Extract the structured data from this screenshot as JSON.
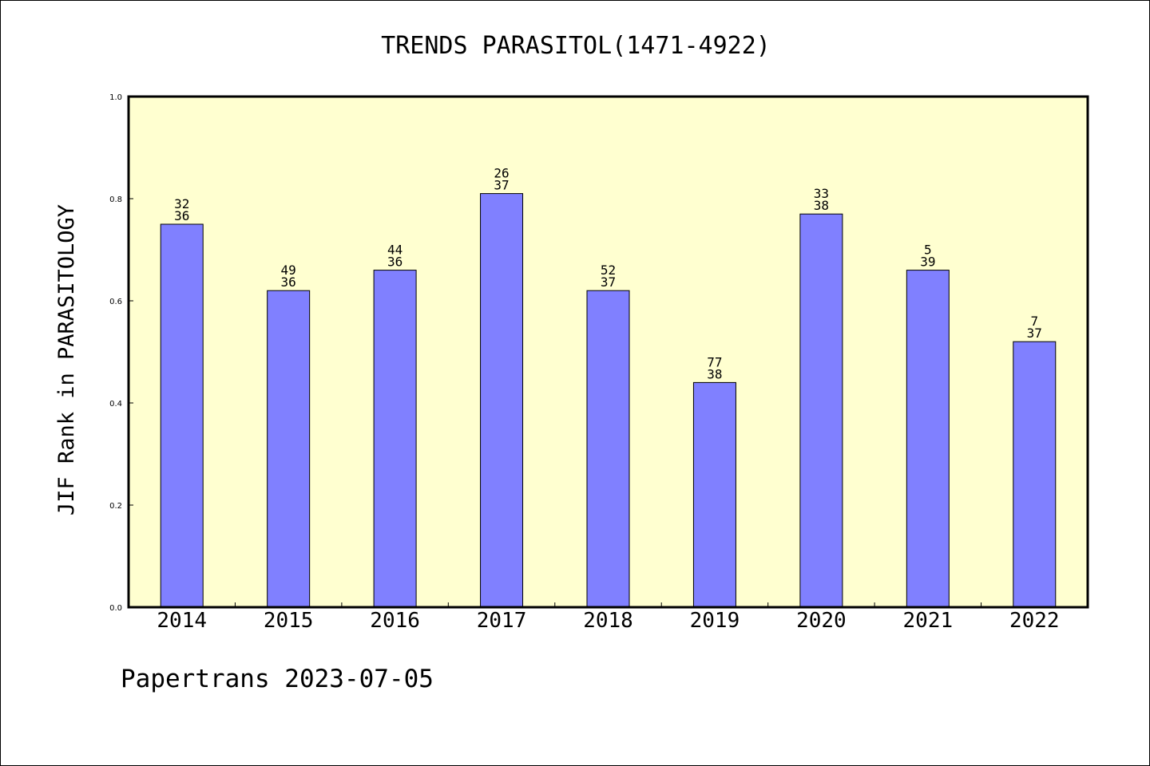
{
  "chart_data": {
    "type": "bar",
    "title": "TRENDS PARASITOL(1471-4922)",
    "xlabel": "",
    "ylabel": "JIF Rank in PARASITOLOGY",
    "categories": [
      "2014",
      "2015",
      "2016",
      "2017",
      "2018",
      "2019",
      "2020",
      "2021",
      "2022"
    ],
    "values": [
      0.75,
      0.62,
      0.66,
      0.81,
      0.62,
      0.44,
      0.77,
      0.66,
      0.52
    ],
    "data_labels_top": [
      "32",
      "49",
      "44",
      "26",
      "52",
      "77",
      "33",
      "5",
      "7"
    ],
    "data_labels_bottom": [
      "36",
      "36",
      "36",
      "37",
      "37",
      "38",
      "38",
      "39",
      "37"
    ],
    "ylim": [
      0,
      1.0
    ],
    "yticks": [
      "0.0",
      "0.2",
      "0.4",
      "0.6",
      "0.8",
      "1.0"
    ],
    "grid": false,
    "colors": {
      "bar": "#8080ff",
      "plot_background": "#ffffd0"
    }
  },
  "footer": {
    "text": "Papertrans 2023-07-05"
  }
}
